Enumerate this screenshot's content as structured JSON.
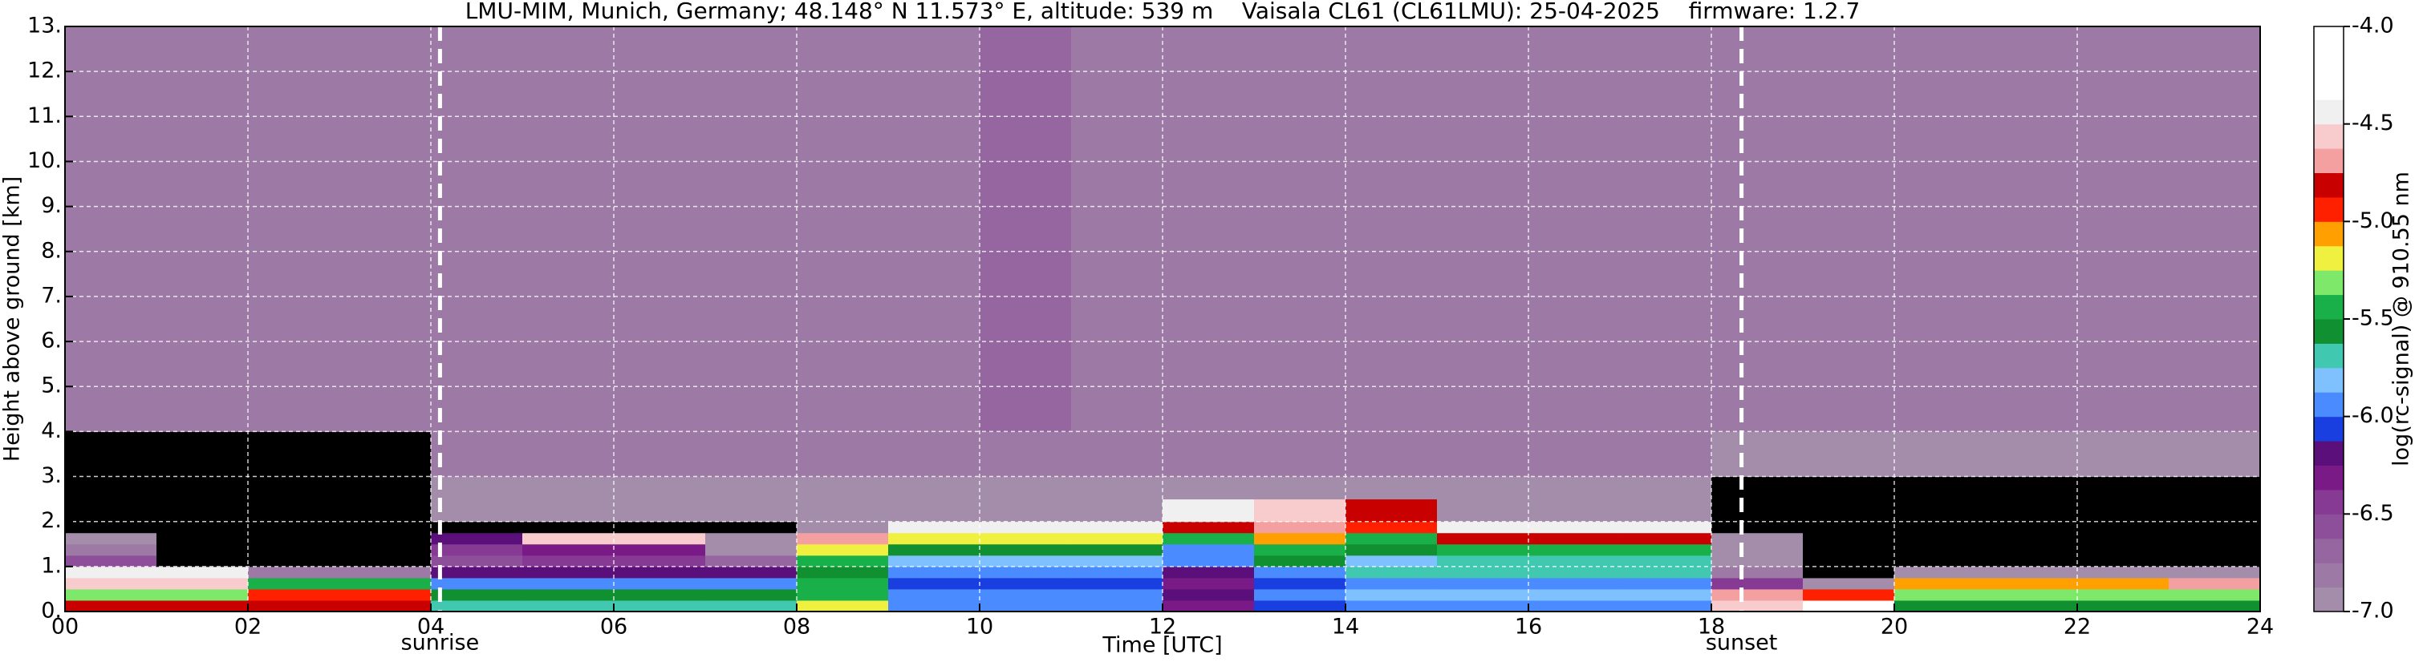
{
  "chart_data": {
    "type": "heatmap",
    "title": "LMU-MIM, Munich, Germany; 48.148° N 11.573° E, altitude: 539 m    Vaisala CL61 (CL61LMU): 25-04-2025    firmware: 1.2.7",
    "x_label": "Time [UTC]",
    "y_label": "Height above ground [km]",
    "xlim": [
      0,
      24
    ],
    "ylim": [
      0,
      13
    ],
    "xticks": [
      {
        "value": 0,
        "label": "00"
      },
      {
        "value": 2,
        "label": "02"
      },
      {
        "value": 4,
        "label": "04"
      },
      {
        "value": 6,
        "label": "06"
      },
      {
        "value": 8,
        "label": "08"
      },
      10,
      12,
      14,
      16,
      18,
      20,
      22,
      24
    ],
    "yticks": [
      {
        "value": 0,
        "label": "0."
      },
      {
        "value": 1,
        "label": "1."
      },
      {
        "value": 2,
        "label": "2."
      },
      {
        "value": 3,
        "label": "3."
      },
      {
        "value": 4,
        "label": "4."
      },
      {
        "value": 5,
        "label": "5."
      },
      {
        "value": 6,
        "label": "6."
      },
      {
        "value": 7,
        "label": "7."
      },
      {
        "value": 8,
        "label": "8."
      },
      {
        "value": 9,
        "label": "9."
      },
      {
        "value": 10,
        "label": "10."
      },
      {
        "value": 11,
        "label": "11."
      },
      {
        "value": 12,
        "label": "12."
      },
      {
        "value": 13,
        "label": "13."
      }
    ],
    "grid": true,
    "x_edges": [
      0,
      1,
      2,
      3,
      4,
      5,
      6,
      7,
      8,
      9,
      10,
      11,
      12,
      13,
      14,
      15,
      16,
      17,
      18,
      19,
      20,
      21,
      22,
      23,
      24
    ],
    "y_edges": [
      0,
      0.25,
      0.5,
      0.75,
      1,
      1.25,
      1.5,
      1.75,
      2,
      2.5,
      3,
      4,
      13
    ],
    "z": [
      [
        -4.8,
        -4.8,
        -4.8,
        -4.8,
        -5.7,
        -5.7,
        -5.7,
        -5.7,
        -5.2,
        -6.0,
        -6.0,
        -6.0,
        -6.3,
        -6.1,
        -5.9,
        -5.9,
        -5.9,
        -5.9,
        -4.6,
        -4.3,
        -5.6,
        -5.6,
        -5.6,
        -5.6
      ],
      [
        -5.3,
        -5.3,
        -5.0,
        -5.0,
        -5.6,
        -5.6,
        -5.6,
        -5.6,
        -5.4,
        -6.0,
        -6.0,
        -6.0,
        -6.2,
        -6.0,
        -5.8,
        -5.8,
        -5.8,
        -5.8,
        -4.7,
        -5.0,
        -5.3,
        -5.3,
        -5.3,
        -5.3
      ],
      [
        -4.6,
        -4.6,
        -5.5,
        -5.5,
        -5.9,
        -5.9,
        -5.9,
        -5.9,
        -5.5,
        -6.1,
        -6.1,
        -6.1,
        -6.3,
        -6.1,
        -5.9,
        -5.9,
        -5.9,
        -5.9,
        -6.5,
        -6.9,
        -5.1,
        -5.1,
        -5.1,
        -4.7
      ],
      [
        -4.5,
        -4.5,
        -6.8,
        -6.8,
        -6.2,
        -6.2,
        -6.2,
        -6.2,
        -5.6,
        -6.0,
        -6.0,
        -6.0,
        -6.2,
        -6.0,
        -5.7,
        -5.7,
        -5.7,
        -5.7,
        -6.8,
        -7.2,
        -6.9,
        -6.9,
        -6.9,
        -6.9
      ],
      [
        -6.6,
        -7.2,
        -7.2,
        -7.2,
        -6.6,
        -6.4,
        -6.4,
        -6.7,
        -5.4,
        -5.8,
        -5.8,
        -5.8,
        -5.9,
        -5.6,
        -5.8,
        -5.7,
        -5.7,
        -5.7,
        -6.9,
        -7.3,
        -7.3,
        -7.3,
        -7.3,
        -7.3
      ],
      [
        -6.8,
        -7.3,
        -7.3,
        -7.3,
        -6.5,
        -6.3,
        -6.3,
        -6.9,
        -5.2,
        -5.6,
        -5.6,
        -5.6,
        -6.0,
        -5.4,
        -5.6,
        -5.4,
        -5.4,
        -5.4,
        -7.0,
        -7.3,
        -7.3,
        -7.3,
        -7.3,
        -7.3
      ],
      [
        -7.0,
        -7.3,
        -7.3,
        -7.3,
        -6.2,
        -4.6,
        -4.6,
        -7.0,
        -4.7,
        -5.2,
        -5.2,
        -5.2,
        -5.5,
        -5.1,
        -5.4,
        -4.8,
        -4.8,
        -4.8,
        -7.0,
        -7.3,
        -7.3,
        -7.3,
        -7.3,
        -7.3
      ],
      [
        -7.3,
        -7.3,
        -7.3,
        -7.3,
        -7.1,
        -7.1,
        -7.1,
        -7.1,
        -7.0,
        -4.5,
        -4.5,
        -4.5,
        -4.8,
        -4.7,
        -5.0,
        -4.5,
        -4.5,
        -4.5,
        -7.3,
        -7.3,
        -7.3,
        -7.3,
        -7.3,
        -7.3
      ],
      [
        -7.3,
        -7.3,
        -7.3,
        -7.3,
        -7.0,
        -7.0,
        -7.0,
        -7.0,
        -7.0,
        -6.9,
        -6.9,
        -6.9,
        -4.5,
        -4.6,
        -4.8,
        -6.9,
        -6.9,
        -6.9,
        -7.3,
        -7.3,
        -7.3,
        -7.3,
        -7.3,
        -7.3
      ],
      [
        -7.3,
        -7.3,
        -7.3,
        -7.3,
        -6.9,
        -6.9,
        -6.9,
        -6.9,
        -6.9,
        -6.9,
        -6.9,
        -6.9,
        -6.9,
        -6.9,
        -6.9,
        -6.9,
        -6.9,
        -6.9,
        -7.2,
        -7.2,
        -7.2,
        -7.2,
        -7.2,
        -7.2
      ],
      [
        -7.1,
        -7.1,
        -7.1,
        -7.1,
        -6.8,
        -6.8,
        -6.8,
        -6.8,
        -6.8,
        -6.8,
        -6.8,
        -6.8,
        -6.8,
        -6.8,
        -6.8,
        -6.8,
        -6.8,
        -6.8,
        -7.0,
        -7.0,
        -7.0,
        -7.0,
        -7.0,
        -7.0
      ],
      [
        -6.8,
        -6.8,
        -6.8,
        -6.8,
        -6.8,
        -6.8,
        -6.8,
        -6.8,
        -6.8,
        -6.8,
        -6.7,
        -6.8,
        -6.8,
        -6.8,
        -6.8,
        -6.8,
        -6.8,
        -6.8,
        -6.8,
        -6.8,
        -6.8,
        -6.8,
        -6.8,
        -6.8
      ]
    ],
    "under_color": "#000000",
    "colorbar": {
      "label": "log(rc-signal) @ 910.55 nm",
      "lim": [
        -7,
        -4
      ],
      "ticks": [
        {
          "value": -4,
          "label": "-4.0"
        },
        -4.5,
        {
          "value": -5,
          "label": "-5.0"
        },
        -5.5,
        {
          "value": -6,
          "label": "-6.0"
        },
        -6.5,
        {
          "value": -7,
          "label": "-7.0"
        }
      ],
      "colors": [
        "#a48dab",
        "#9c7aa5",
        "#9566a0",
        "#8e4f9a",
        "#863a94",
        "#7a1a86",
        "#5b0f7a",
        "#1a3fe0",
        "#4a8cff",
        "#7fc0ff",
        "#40c8b0",
        "#109030",
        "#19b04a",
        "#7ee86a",
        "#f0f040",
        "#ffa000",
        "#ff2000",
        "#c80000",
        "#f4a0a0",
        "#f8cccc",
        "#f0f0f0",
        "#ffffff",
        "#ffffff",
        "#ffffff"
      ]
    },
    "annotations": [
      {
        "text": "sunrise",
        "x": 4.1
      },
      {
        "text": "sunset",
        "x": 18.33
      }
    ]
  }
}
